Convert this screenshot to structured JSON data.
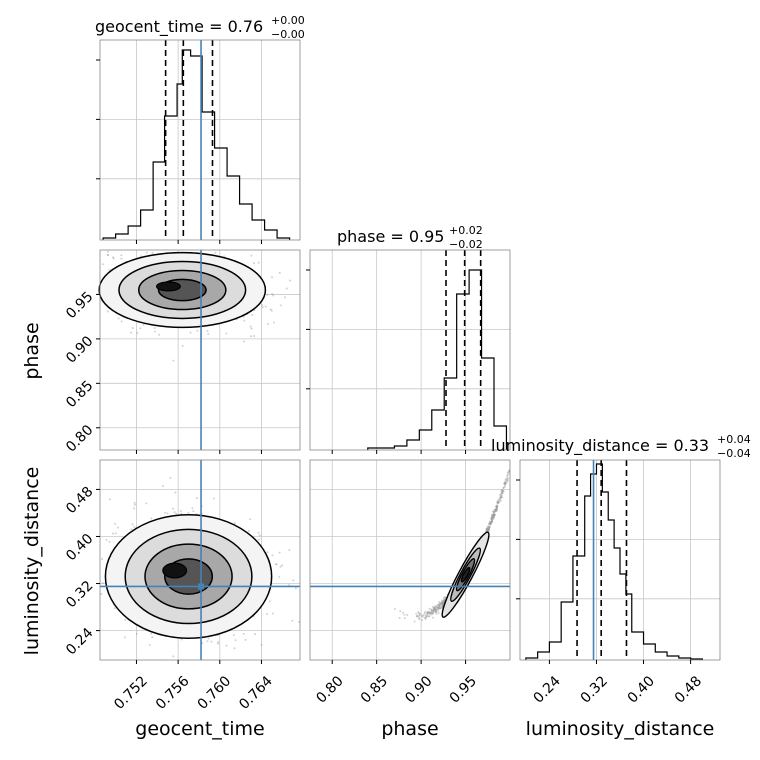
{
  "chart_data": {
    "type": "corner",
    "parameters": [
      "geocent_time",
      "phase",
      "luminosity_distance"
    ],
    "truths": {
      "geocent_time": 0.7582,
      "phase": null,
      "luminosity_distance": 0.315
    },
    "colors": {
      "truth": "#4682b4",
      "hist": "#000000",
      "grid": "#c8c8c8",
      "quantile": "#000000"
    },
    "grid": true,
    "diagonal": [
      {
        "param": "geocent_time",
        "title_main": "geocent_time = 0.76",
        "title_sup": "+0.00",
        "title_sub": "−0.00",
        "quantiles": [
          0.7548,
          0.7565,
          0.7593
        ],
        "xlim": [
          0.7485,
          0.7677
        ],
        "ylim": [
          0,
          1.0
        ],
        "bin_edges": [
          0.7488,
          0.75,
          0.7512,
          0.7524,
          0.7536,
          0.7547,
          0.7559,
          0.7564,
          0.7572,
          0.7583,
          0.7595,
          0.7607,
          0.7619,
          0.7631,
          0.7643,
          0.7655,
          0.7667
        ],
        "counts": [
          0.01,
          0.03,
          0.07,
          0.15,
          0.39,
          0.62,
          0.78,
          0.95,
          0.92,
          0.64,
          0.46,
          0.32,
          0.18,
          0.1,
          0.05,
          0.01
        ]
      },
      {
        "param": "phase",
        "title_main": "phase = 0.95",
        "title_sup": "+0.02",
        "title_sub": "−0.02",
        "quantiles": [
          0.928,
          0.949,
          0.967
        ],
        "xlim": [
          0.775,
          1.0
        ],
        "ylim": [
          0,
          1.0
        ],
        "bin_edges": [
          0.84,
          0.87,
          0.884,
          0.898,
          0.912,
          0.926,
          0.94,
          0.954,
          0.968,
          0.982,
          0.996
        ],
        "counts": [
          0.01,
          0.02,
          0.05,
          0.1,
          0.2,
          0.36,
          0.78,
          0.9,
          0.46,
          0.12
        ]
      },
      {
        "param": "luminosity_distance",
        "title_main": "luminosity_distance = 0.33",
        "title_sup": "+0.04",
        "title_sub": "−0.04",
        "quantiles": [
          0.287,
          0.328,
          0.371
        ],
        "xlim": [
          0.19,
          0.53
        ],
        "ylim": [
          0,
          1.0
        ],
        "bin_edges": [
          0.2,
          0.22,
          0.24,
          0.26,
          0.28,
          0.3,
          0.31,
          0.32,
          0.33,
          0.34,
          0.35,
          0.36,
          0.37,
          0.38,
          0.4,
          0.42,
          0.44,
          0.46,
          0.48,
          0.5
        ],
        "counts": [
          0.01,
          0.04,
          0.09,
          0.29,
          0.52,
          0.82,
          0.93,
          0.98,
          0.84,
          0.7,
          0.56,
          0.43,
          0.33,
          0.14,
          0.08,
          0.04,
          0.02,
          0.01,
          0.005
        ]
      }
    ],
    "axes": {
      "geocent_time": {
        "label": "geocent_time",
        "lim": [
          0.7485,
          0.7677
        ],
        "ticks": [
          0.752,
          0.756,
          0.76,
          0.764
        ],
        "ticklabels": [
          "0.752",
          "0.756",
          "0.760",
          "0.764"
        ]
      },
      "phase": {
        "label": "phase",
        "lim": [
          0.775,
          1.0
        ],
        "ticks": [
          0.8,
          0.85,
          0.9,
          0.95
        ],
        "ticklabels": [
          "0.80",
          "0.85",
          "0.90",
          "0.95"
        ]
      },
      "luminosity_distance": {
        "label": "luminosity_distance",
        "lim": [
          0.19,
          0.53
        ],
        "ticks": [
          0.24,
          0.32,
          0.4,
          0.48
        ],
        "ticklabels": [
          "0.24",
          "0.32",
          "0.40",
          "0.48"
        ]
      }
    },
    "pairs": [
      {
        "x": "geocent_time",
        "y": "phase",
        "center": [
          0.7564,
          0.955
        ],
        "spread": [
          0.0038,
          0.02
        ],
        "corr": -0.15,
        "truth_v": 0.7582,
        "truth_h": null
      },
      {
        "x": "geocent_time",
        "y": "luminosity_distance",
        "center": [
          0.757,
          0.332
        ],
        "spread": [
          0.0038,
          0.05
        ],
        "corr": -0.1,
        "truth_v": 0.7582,
        "truth_h": 0.315
      },
      {
        "x": "phase",
        "y": "luminosity_distance",
        "center": [
          0.95,
          0.335
        ],
        "spread": [
          0.012,
          0.03
        ],
        "corr": 0.99,
        "curve": true,
        "truth_v": null,
        "truth_h": 0.315
      }
    ]
  }
}
